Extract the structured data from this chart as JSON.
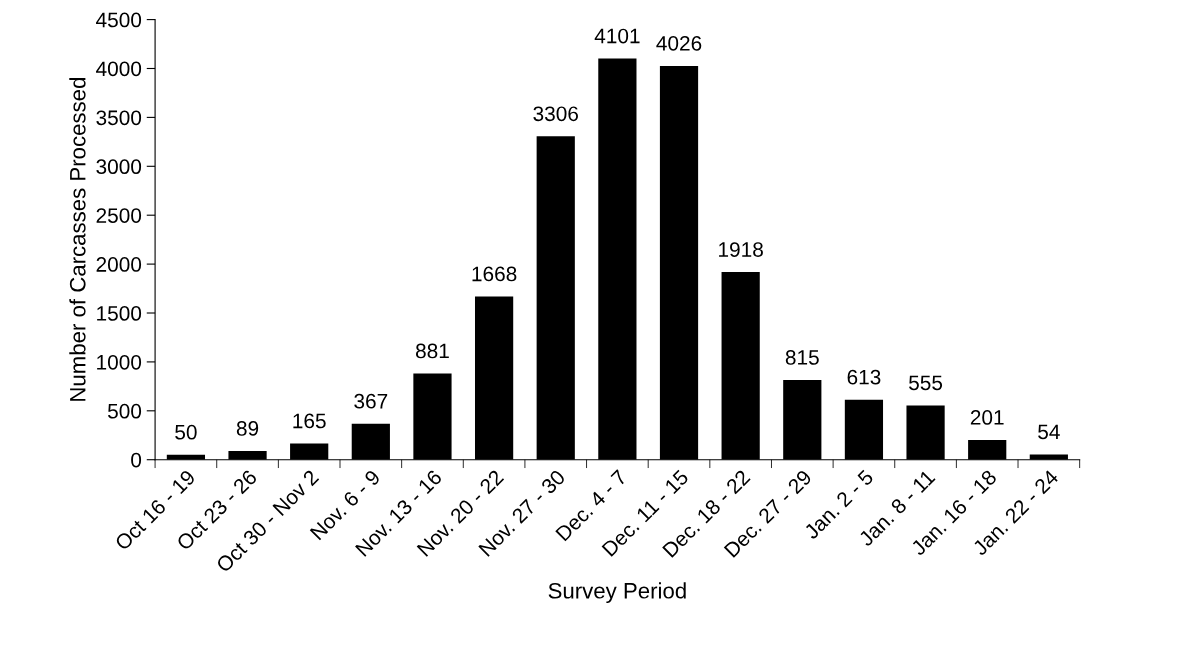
{
  "chart_data": {
    "type": "bar",
    "xlabel": "Survey Period",
    "ylabel": "Number of Carcasses Processed",
    "categories": [
      "Oct 16 - 19",
      "Oct 23 - 26",
      "Oct 30 - Nov 2",
      "Nov. 6 - 9",
      "Nov. 13 - 16",
      "Nov. 20 - 22",
      "Nov. 27 - 30",
      "Dec. 4 - 7",
      "Dec. 11 - 15",
      "Dec. 18 - 22",
      "Dec. 27 - 29",
      "Jan. 2 - 5",
      "Jan. 8 - 11",
      "Jan. 16 - 18",
      "Jan. 22 - 24"
    ],
    "values": [
      50,
      89,
      165,
      367,
      881,
      1668,
      3306,
      4101,
      4026,
      1918,
      815,
      613,
      555,
      201,
      54
    ],
    "color": "#000000",
    "ylim": [
      0,
      4500
    ],
    "yticks": [
      0,
      500,
      1000,
      1500,
      2000,
      2500,
      3000,
      3500,
      4000,
      4500
    ],
    "grid": false,
    "data_labels": true
  }
}
